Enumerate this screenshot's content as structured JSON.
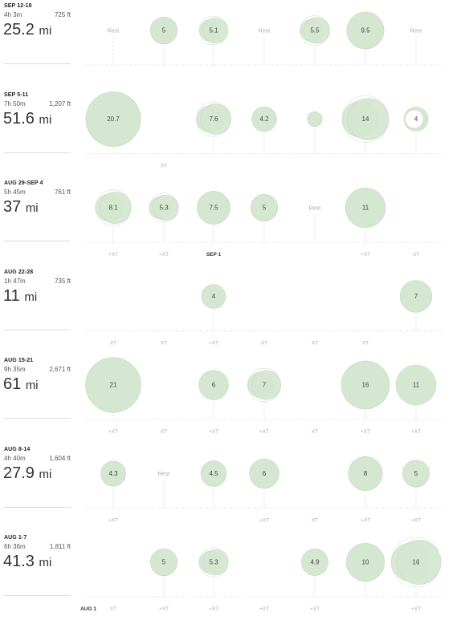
{
  "chart_data": {
    "type": "scatter",
    "note_units": "miles per day",
    "day_columns": [
      "Mon",
      "Tue",
      "Wed",
      "Thu",
      "Fri",
      "Sat",
      "Sun"
    ],
    "colors": {
      "bubble": "#d5e7d1",
      "bubble_stroke": "#c2d8bd",
      "grid": "#cccccc",
      "label": "#aaaaaa"
    },
    "weeks": [
      {
        "title": "SEP 12-18",
        "time": "4h 3m",
        "elevation": "725 ft",
        "miles": "25.2",
        "unit": "mi",
        "days": [
          {
            "type": "text",
            "text": "Rest"
          },
          {
            "type": "run",
            "miles": 5,
            "label": "5"
          },
          {
            "type": "run",
            "miles": 5.1,
            "label": "5.1",
            "double": true
          },
          {
            "type": "text",
            "text": "Rest"
          },
          {
            "type": "run",
            "miles": 5.5,
            "label": "5.5",
            "double": true
          },
          {
            "type": "run",
            "miles": 9.5,
            "label": "9.5"
          },
          {
            "type": "text",
            "text": "Rest"
          }
        ],
        "below": [
          "",
          "",
          "",
          "",
          "",
          "",
          ""
        ]
      },
      {
        "title": "SEP 5-11",
        "time": "7h 50m",
        "elevation": "1,207 ft",
        "miles": "51.6",
        "unit": "mi",
        "days": [
          {
            "type": "run",
            "miles": 20.7,
            "label": "20.7"
          },
          {
            "type": "none"
          },
          {
            "type": "run",
            "miles": 7.6,
            "label": "7.6",
            "double": true
          },
          {
            "type": "run",
            "miles": 4.2,
            "label": "4.2"
          },
          {
            "type": "run",
            "miles": 1.5,
            "label": ""
          },
          {
            "type": "run",
            "miles": 14,
            "label": "14",
            "double": true
          },
          {
            "type": "run",
            "miles": 4,
            "label": "4",
            "ring": true
          }
        ],
        "below": [
          "",
          "XT",
          "",
          "",
          "",
          "",
          ""
        ]
      },
      {
        "title": "AUG 29-SEP 4",
        "time": "5h 45m",
        "elevation": "761 ft",
        "miles": "37",
        "unit": "mi",
        "days": [
          {
            "type": "run",
            "miles": 8.1,
            "label": "8.1",
            "double": true
          },
          {
            "type": "run",
            "miles": 5.3,
            "label": "5.3",
            "double": true
          },
          {
            "type": "run",
            "miles": 7.5,
            "label": "7.5"
          },
          {
            "type": "run",
            "miles": 5,
            "label": "5"
          },
          {
            "type": "text",
            "text": "Rest"
          },
          {
            "type": "run",
            "miles": 11,
            "label": "11"
          },
          {
            "type": "none"
          }
        ],
        "below": [
          "+XT",
          "+XT",
          "SEP 1",
          "",
          "",
          "+XT",
          "XT"
        ]
      },
      {
        "title": "AUG 22-28",
        "time": "1h 47m",
        "elevation": "735 ft",
        "miles": "11",
        "unit": "mi",
        "days": [
          {
            "type": "none"
          },
          {
            "type": "none"
          },
          {
            "type": "run",
            "miles": 4,
            "label": "4"
          },
          {
            "type": "none"
          },
          {
            "type": "none"
          },
          {
            "type": "none"
          },
          {
            "type": "run",
            "miles": 7,
            "label": "7"
          }
        ],
        "below": [
          "XT",
          "XT",
          "+XT",
          "XT",
          "XT",
          "XT",
          ""
        ]
      },
      {
        "title": "AUG 15-21",
        "time": "9h 35m",
        "elevation": "2,671 ft",
        "miles": "61",
        "unit": "mi",
        "days": [
          {
            "type": "run",
            "miles": 21,
            "label": "21"
          },
          {
            "type": "none"
          },
          {
            "type": "run",
            "miles": 6,
            "label": "6"
          },
          {
            "type": "run",
            "miles": 7,
            "label": "7",
            "double": true
          },
          {
            "type": "none"
          },
          {
            "type": "run",
            "miles": 16,
            "label": "16"
          },
          {
            "type": "run",
            "miles": 11,
            "label": "11"
          }
        ],
        "below": [
          "+XT",
          "XT",
          "+XT",
          "+XT",
          "XT",
          "+XT",
          "+XT"
        ]
      },
      {
        "title": "AUG 8-14",
        "time": "4h 40m",
        "elevation": "1,604 ft",
        "miles": "27.9",
        "unit": "mi",
        "days": [
          {
            "type": "run",
            "miles": 4.3,
            "label": "4.3"
          },
          {
            "type": "text",
            "text": "Rest"
          },
          {
            "type": "run",
            "miles": 4.5,
            "label": "4.5"
          },
          {
            "type": "run",
            "miles": 6,
            "label": "6"
          },
          {
            "type": "none"
          },
          {
            "type": "run",
            "miles": 8,
            "label": "8"
          },
          {
            "type": "run",
            "miles": 5,
            "label": "5"
          }
        ],
        "below": [
          "+XT",
          "",
          "",
          "+XT",
          "XT",
          "+XT",
          "+XT"
        ]
      },
      {
        "title": "AUG 1-7",
        "time": "6h 36m",
        "elevation": "1,811 ft",
        "miles": "41.3",
        "unit": "mi",
        "days": [
          {
            "type": "none"
          },
          {
            "type": "run",
            "miles": 5,
            "label": "5"
          },
          {
            "type": "run",
            "miles": 5.3,
            "label": "5.3",
            "double": true
          },
          {
            "type": "none"
          },
          {
            "type": "run",
            "miles": 4.9,
            "label": "4.9"
          },
          {
            "type": "run",
            "miles": 10,
            "label": "10"
          },
          {
            "type": "run",
            "miles": 16,
            "label": "16",
            "double": true
          }
        ],
        "below": [
          "XT",
          "+XT",
          "+XT",
          "+XT",
          "+XT",
          "",
          "+XT"
        ],
        "axis_start_label": "AUG 1"
      }
    ]
  }
}
